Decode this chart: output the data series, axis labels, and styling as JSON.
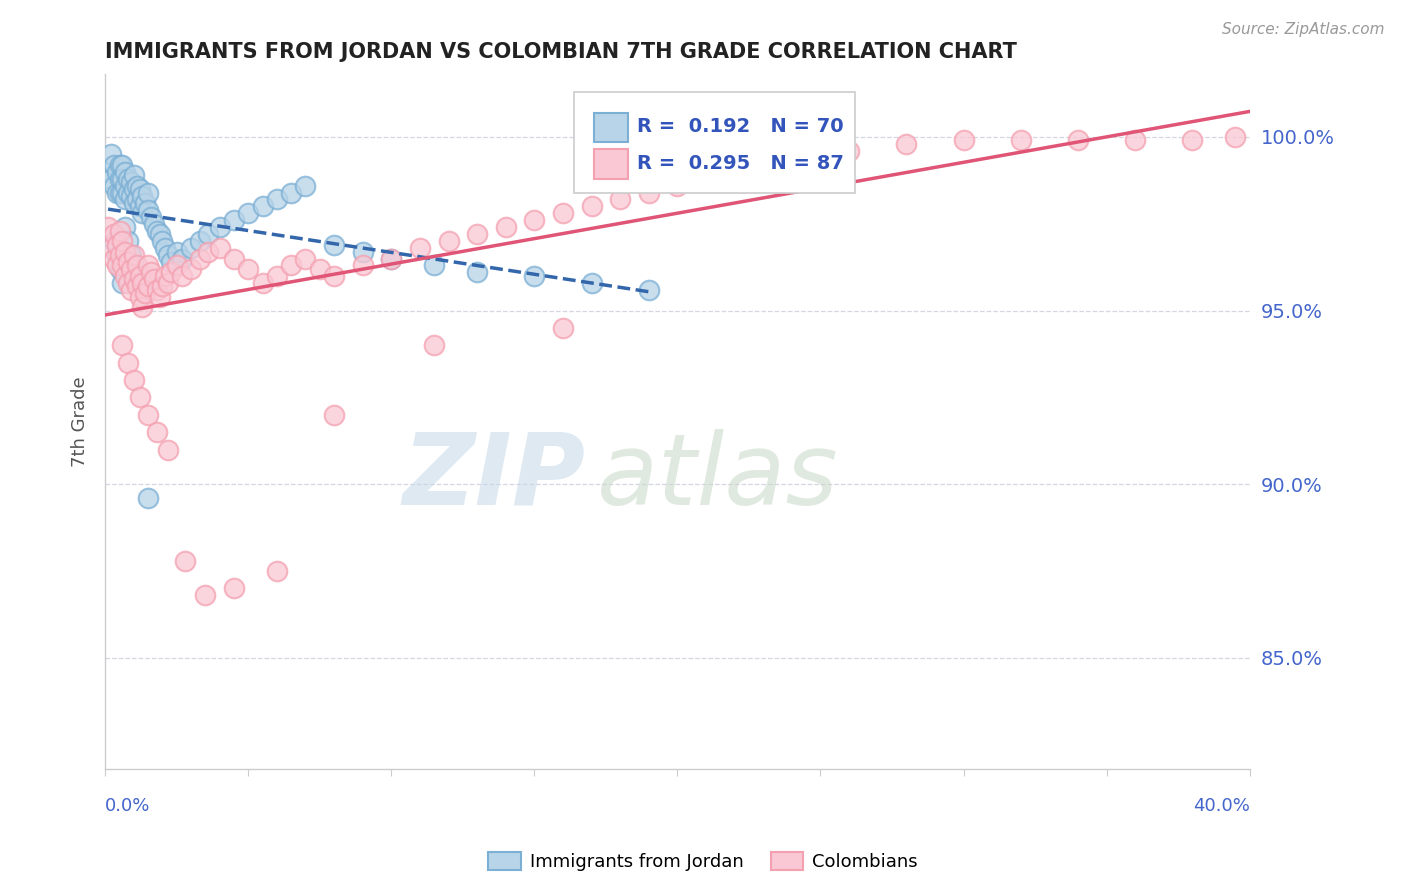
{
  "title": "IMMIGRANTS FROM JORDAN VS COLOMBIAN 7TH GRADE CORRELATION CHART",
  "source_text": "Source: ZipAtlas.com",
  "ylabel": "7th Grade",
  "blue_R": 0.192,
  "blue_N": 70,
  "pink_R": 0.295,
  "pink_N": 87,
  "blue_color": "#7BAFD4",
  "blue_face_color": "#B8D4E8",
  "pink_color": "#F4A0B0",
  "pink_face_color": "#F9C8D4",
  "trend_blue_color": "#3366AA",
  "trend_pink_color": "#E05575",
  "watermark_color": "#C5D8E8",
  "watermark2_color": "#C8D8C8",
  "title_color": "#222222",
  "axis_label_color": "#4466CC",
  "legend_color": "#3355BB",
  "x_range": [
    0.0,
    0.4
  ],
  "y_range": [
    0.818,
    1.018
  ],
  "y_ticks": [
    0.85,
    0.9,
    0.95,
    1.0
  ],
  "y_tick_labels": [
    "85.0%",
    "90.0%",
    "95.0%",
    "100.0%"
  ],
  "blue_x": [
    0.001,
    0.002,
    0.002,
    0.003,
    0.003,
    0.004,
    0.004,
    0.005,
    0.005,
    0.005,
    0.006,
    0.006,
    0.006,
    0.007,
    0.007,
    0.007,
    0.008,
    0.008,
    0.009,
    0.009,
    0.01,
    0.01,
    0.01,
    0.011,
    0.011,
    0.012,
    0.012,
    0.013,
    0.013,
    0.014,
    0.015,
    0.015,
    0.016,
    0.017,
    0.018,
    0.019,
    0.02,
    0.021,
    0.022,
    0.023,
    0.025,
    0.027,
    0.03,
    0.033,
    0.036,
    0.04,
    0.045,
    0.05,
    0.055,
    0.06,
    0.065,
    0.07,
    0.08,
    0.09,
    0.1,
    0.115,
    0.13,
    0.15,
    0.17,
    0.19,
    0.003,
    0.004,
    0.005,
    0.006,
    0.007,
    0.008,
    0.009,
    0.01,
    0.012,
    0.015
  ],
  "blue_y": [
    0.99,
    0.995,
    0.988,
    0.992,
    0.986,
    0.99,
    0.984,
    0.992,
    0.988,
    0.984,
    0.992,
    0.988,
    0.984,
    0.99,
    0.986,
    0.982,
    0.988,
    0.984,
    0.987,
    0.983,
    0.989,
    0.985,
    0.981,
    0.986,
    0.982,
    0.985,
    0.98,
    0.983,
    0.978,
    0.981,
    0.984,
    0.979,
    0.977,
    0.975,
    0.973,
    0.972,
    0.97,
    0.968,
    0.966,
    0.964,
    0.967,
    0.965,
    0.968,
    0.97,
    0.972,
    0.974,
    0.976,
    0.978,
    0.98,
    0.982,
    0.984,
    0.986,
    0.969,
    0.967,
    0.965,
    0.963,
    0.961,
    0.96,
    0.958,
    0.956,
    0.97,
    0.966,
    0.962,
    0.958,
    0.974,
    0.97,
    0.966,
    0.963,
    0.959,
    0.896
  ],
  "pink_x": [
    0.001,
    0.002,
    0.003,
    0.003,
    0.004,
    0.004,
    0.005,
    0.005,
    0.006,
    0.006,
    0.007,
    0.007,
    0.008,
    0.008,
    0.009,
    0.009,
    0.01,
    0.01,
    0.011,
    0.011,
    0.012,
    0.012,
    0.013,
    0.013,
    0.014,
    0.015,
    0.015,
    0.016,
    0.017,
    0.018,
    0.019,
    0.02,
    0.021,
    0.022,
    0.023,
    0.025,
    0.027,
    0.03,
    0.033,
    0.036,
    0.04,
    0.045,
    0.05,
    0.055,
    0.06,
    0.065,
    0.07,
    0.075,
    0.08,
    0.09,
    0.1,
    0.11,
    0.12,
    0.13,
    0.14,
    0.15,
    0.16,
    0.17,
    0.18,
    0.19,
    0.2,
    0.21,
    0.22,
    0.23,
    0.24,
    0.26,
    0.28,
    0.3,
    0.32,
    0.34,
    0.36,
    0.38,
    0.395,
    0.006,
    0.008,
    0.01,
    0.012,
    0.015,
    0.018,
    0.022,
    0.028,
    0.035,
    0.045,
    0.06,
    0.08,
    0.115,
    0.16
  ],
  "pink_y": [
    0.974,
    0.968,
    0.972,
    0.965,
    0.969,
    0.963,
    0.973,
    0.966,
    0.97,
    0.963,
    0.967,
    0.96,
    0.964,
    0.958,
    0.962,
    0.956,
    0.966,
    0.959,
    0.963,
    0.957,
    0.96,
    0.954,
    0.958,
    0.951,
    0.955,
    0.963,
    0.957,
    0.961,
    0.959,
    0.956,
    0.954,
    0.957,
    0.96,
    0.958,
    0.961,
    0.963,
    0.96,
    0.962,
    0.965,
    0.967,
    0.968,
    0.965,
    0.962,
    0.958,
    0.96,
    0.963,
    0.965,
    0.962,
    0.96,
    0.963,
    0.965,
    0.968,
    0.97,
    0.972,
    0.974,
    0.976,
    0.978,
    0.98,
    0.982,
    0.984,
    0.986,
    0.988,
    0.99,
    0.992,
    0.994,
    0.996,
    0.998,
    0.999,
    0.999,
    0.999,
    0.999,
    0.999,
    1.0,
    0.94,
    0.935,
    0.93,
    0.925,
    0.92,
    0.915,
    0.91,
    0.878,
    0.868,
    0.87,
    0.875,
    0.92,
    0.94,
    0.945
  ]
}
